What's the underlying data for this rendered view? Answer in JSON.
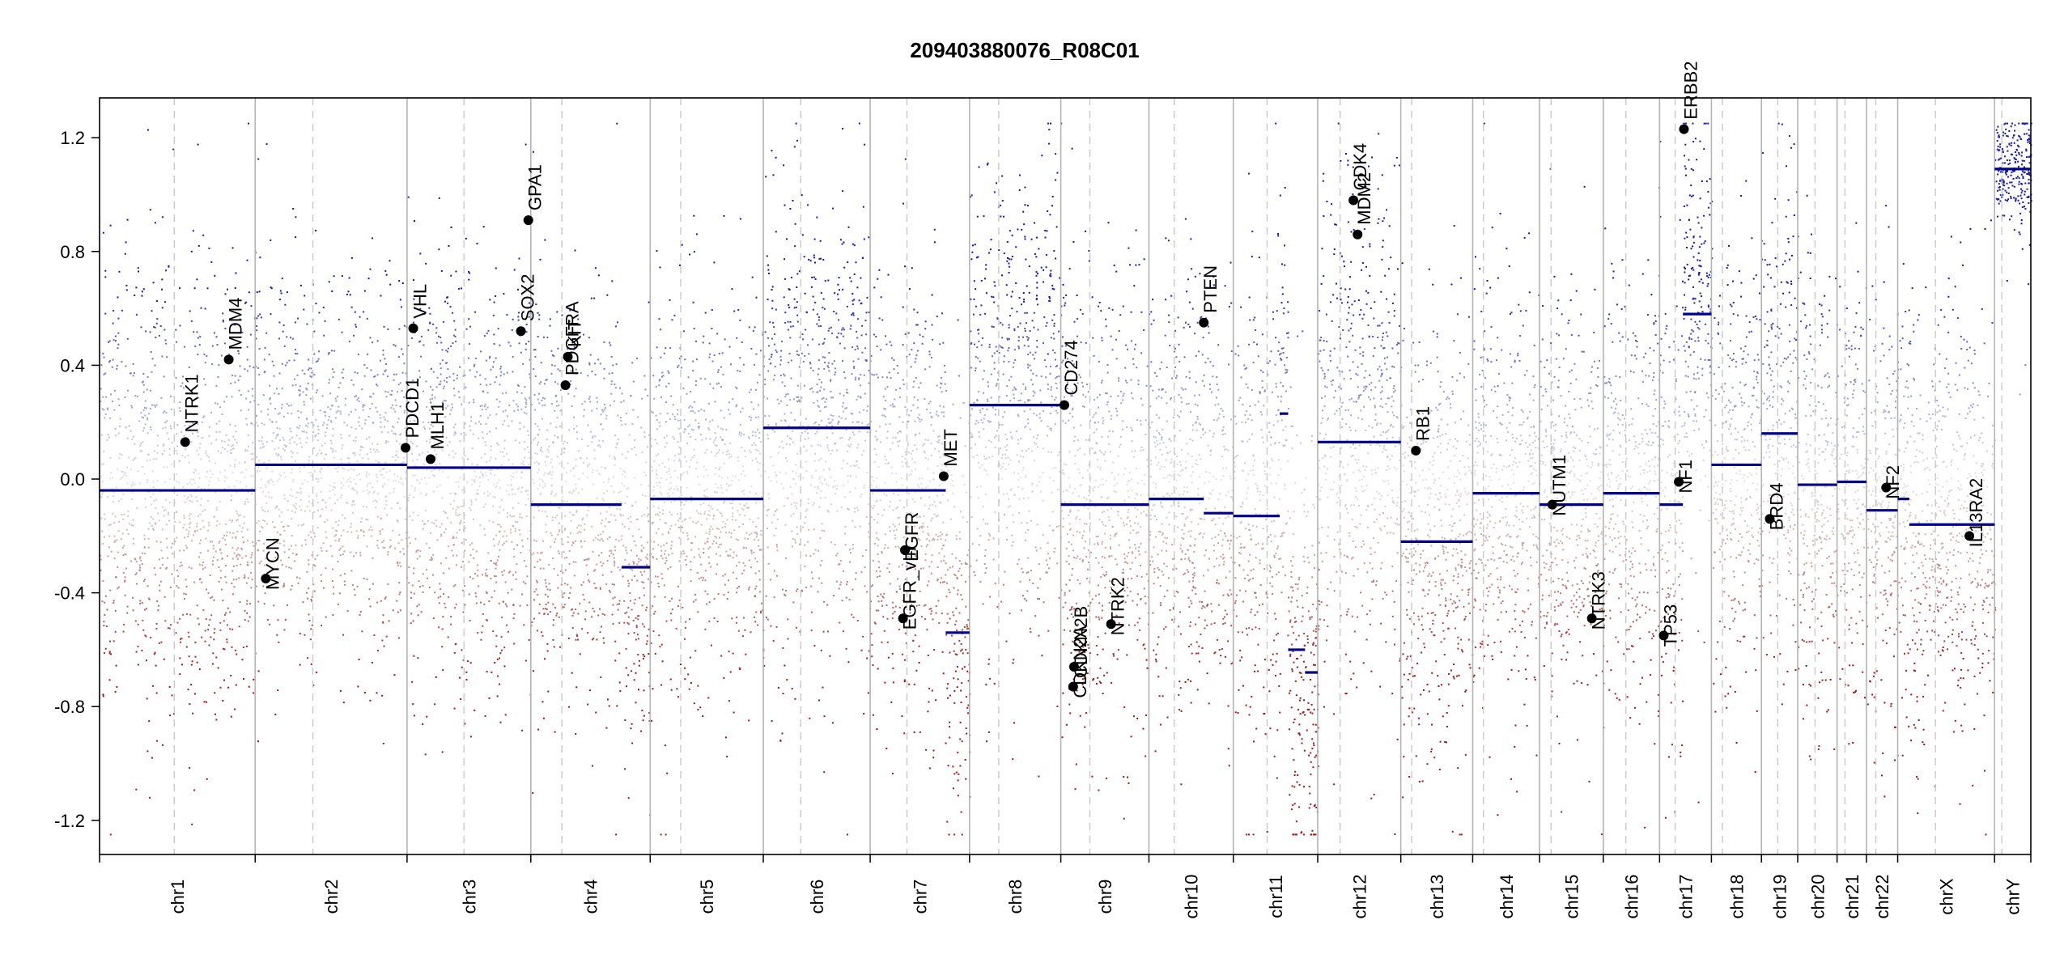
{
  "chart_data": {
    "type": "scatter",
    "title": "209403880076_R08C01",
    "xlabel": "",
    "ylabel": "",
    "ylim": [
      -1.32,
      1.34
    ],
    "y_ticks": [
      1.2,
      0.8,
      0.4,
      0.0,
      -0.4,
      -0.8,
      -1.2
    ],
    "y_tick_labels": [
      "1.2",
      "0.8",
      "0.4",
      "0.0",
      "-0.4",
      "-0.8",
      "-1.2"
    ],
    "grid": false,
    "legend": "none",
    "colors": {
      "gain": "#1a1aa0",
      "loss": "#a01a1a",
      "segment": "#00008b",
      "neutral": "#c8c8c8"
    },
    "chromosomes": [
      {
        "name": "chr1",
        "length": 249,
        "centromere": 0.48,
        "segments": [
          {
            "start": 0,
            "end": 1,
            "value": -0.04
          }
        ],
        "noise": 0.38
      },
      {
        "name": "chr2",
        "length": 243,
        "centromere": 0.38,
        "segments": [
          {
            "start": 0,
            "end": 1,
            "value": 0.05
          }
        ],
        "noise": 0.3
      },
      {
        "name": "chr3",
        "length": 198,
        "centromere": 0.46,
        "segments": [
          {
            "start": 0,
            "end": 1,
            "value": 0.04
          }
        ],
        "noise": 0.36
      },
      {
        "name": "chr4",
        "length": 191,
        "centromere": 0.26,
        "segments": [
          {
            "start": 0,
            "end": 0.76,
            "value": -0.09
          },
          {
            "start": 0.76,
            "end": 1,
            "value": -0.31
          }
        ],
        "noise": 0.34
      },
      {
        "name": "chr5",
        "length": 181,
        "centromere": 0.27,
        "segments": [
          {
            "start": 0,
            "end": 1,
            "value": -0.07
          }
        ],
        "noise": 0.32
      },
      {
        "name": "chr6",
        "length": 171,
        "centromere": 0.35,
        "segments": [
          {
            "start": 0,
            "end": 1,
            "value": 0.18
          }
        ],
        "noise": 0.38
      },
      {
        "name": "chr7",
        "length": 159,
        "centromere": 0.37,
        "segments": [
          {
            "start": 0,
            "end": 0.76,
            "value": -0.04
          },
          {
            "start": 0.76,
            "end": 1,
            "value": -0.54
          }
        ],
        "noise": 0.36
      },
      {
        "name": "chr8",
        "length": 146,
        "centromere": 0.32,
        "segments": [
          {
            "start": 0,
            "end": 1,
            "value": 0.26
          }
        ],
        "noise": 0.42
      },
      {
        "name": "chr9",
        "length": 141,
        "centromere": 0.33,
        "segments": [
          {
            "start": 0,
            "end": 1,
            "value": -0.09
          }
        ],
        "noise": 0.38
      },
      {
        "name": "chr10",
        "length": 135,
        "centromere": 0.3,
        "segments": [
          {
            "start": 0,
            "end": 0.65,
            "value": -0.07
          },
          {
            "start": 0.65,
            "end": 1,
            "value": -0.12
          }
        ],
        "noise": 0.34
      },
      {
        "name": "chr11",
        "length": 135,
        "centromere": 0.4,
        "segments": [
          {
            "start": 0,
            "end": 0.55,
            "value": -0.13
          },
          {
            "start": 0.55,
            "end": 0.65,
            "value": 0.23
          },
          {
            "start": 0.65,
            "end": 0.85,
            "value": -0.6
          },
          {
            "start": 0.85,
            "end": 1,
            "value": -0.68
          }
        ],
        "noise": 0.4
      },
      {
        "name": "chr12",
        "length": 133,
        "centromere": 0.27,
        "segments": [
          {
            "start": 0,
            "end": 1,
            "value": 0.13
          }
        ],
        "noise": 0.4
      },
      {
        "name": "chr13",
        "length": 115,
        "centromere": 0.15,
        "segments": [
          {
            "start": 0,
            "end": 1,
            "value": -0.22
          }
        ],
        "noise": 0.36
      },
      {
        "name": "chr14",
        "length": 107,
        "centromere": 0.16,
        "segments": [
          {
            "start": 0,
            "end": 1,
            "value": -0.05
          }
        ],
        "noise": 0.34
      },
      {
        "name": "chr15",
        "length": 102,
        "centromere": 0.18,
        "segments": [
          {
            "start": 0,
            "end": 1,
            "value": -0.09
          }
        ],
        "noise": 0.34
      },
      {
        "name": "chr16",
        "length": 90,
        "centromere": 0.4,
        "segments": [
          {
            "start": 0,
            "end": 1,
            "value": -0.05
          }
        ],
        "noise": 0.36
      },
      {
        "name": "chr17",
        "length": 83,
        "centromere": 0.3,
        "segments": [
          {
            "start": 0,
            "end": 0.45,
            "value": -0.09
          },
          {
            "start": 0.45,
            "end": 1,
            "value": 0.58
          }
        ],
        "noise": 0.38
      },
      {
        "name": "chr18",
        "length": 80,
        "centromere": 0.22,
        "segments": [
          {
            "start": 0,
            "end": 1,
            "value": 0.05
          }
        ],
        "noise": 0.34
      },
      {
        "name": "chr19",
        "length": 58,
        "centromere": 0.45,
        "segments": [
          {
            "start": 0,
            "end": 1,
            "value": 0.16
          }
        ],
        "noise": 0.4
      },
      {
        "name": "chr20",
        "length": 63,
        "centromere": 0.44,
        "segments": [
          {
            "start": 0,
            "end": 1,
            "value": -0.02
          }
        ],
        "noise": 0.36
      },
      {
        "name": "chr21",
        "length": 47,
        "centromere": 0.27,
        "segments": [
          {
            "start": 0,
            "end": 1,
            "value": -0.01
          }
        ],
        "noise": 0.34
      },
      {
        "name": "chr22",
        "length": 50,
        "centromere": 0.3,
        "segments": [
          {
            "start": 0,
            "end": 1,
            "value": -0.11
          }
        ],
        "noise": 0.38
      },
      {
        "name": "chrX",
        "length": 155,
        "centromere": 0.39,
        "segments": [
          {
            "start": 0,
            "end": 0.12,
            "value": -0.07
          },
          {
            "start": 0.12,
            "end": 1,
            "value": -0.16
          }
        ],
        "noise": 0.36
      },
      {
        "name": "chrY",
        "length": 58,
        "centromere": 0.2,
        "segments": [
          {
            "start": 0,
            "end": 1,
            "value": 1.09
          }
        ],
        "noise": 0.1
      }
    ],
    "genes": [
      {
        "name": "NTRK1",
        "chr": "chr1",
        "pos": 0.55,
        "value": 0.13
      },
      {
        "name": "MDM4",
        "chr": "chr1",
        "pos": 0.83,
        "value": 0.42
      },
      {
        "name": "MYCN",
        "chr": "chr2",
        "pos": 0.07,
        "value": -0.35
      },
      {
        "name": "PDCD1",
        "chr": "chr2",
        "pos": 0.99,
        "value": 0.11
      },
      {
        "name": "VHL",
        "chr": "chr3",
        "pos": 0.05,
        "value": 0.53
      },
      {
        "name": "MLH1",
        "chr": "chr3",
        "pos": 0.19,
        "value": 0.07
      },
      {
        "name": "SOX2",
        "chr": "chr3",
        "pos": 0.92,
        "value": 0.52
      },
      {
        "name": "GPA1",
        "chr": "chr3",
        "pos": 0.98,
        "value": 0.91
      },
      {
        "name": "PDGFRA",
        "chr": "chr4",
        "pos": 0.29,
        "value": 0.33
      },
      {
        "name": "KIT",
        "chr": "chr4",
        "pos": 0.31,
        "value": 0.43
      },
      {
        "name": "EGFR_vIII",
        "chr": "chr7",
        "pos": 0.33,
        "value": -0.49
      },
      {
        "name": "EGFR",
        "chr": "chr7",
        "pos": 0.35,
        "value": -0.25
      },
      {
        "name": "MET",
        "chr": "chr7",
        "pos": 0.74,
        "value": 0.01
      },
      {
        "name": "CD274",
        "chr": "chr9",
        "pos": 0.04,
        "value": 0.26
      },
      {
        "name": "CDKN2A",
        "chr": "chr9",
        "pos": 0.14,
        "value": -0.73
      },
      {
        "name": "CDKN2B",
        "chr": "chr9",
        "pos": 0.15,
        "value": -0.66
      },
      {
        "name": "NTRK2",
        "chr": "chr9",
        "pos": 0.57,
        "value": -0.51
      },
      {
        "name": "PTEN",
        "chr": "chr10",
        "pos": 0.65,
        "value": 0.55
      },
      {
        "name": "CDK4",
        "chr": "chr12",
        "pos": 0.43,
        "value": 0.98
      },
      {
        "name": "MDM2",
        "chr": "chr12",
        "pos": 0.48,
        "value": 0.86
      },
      {
        "name": "RB1",
        "chr": "chr13",
        "pos": 0.21,
        "value": 0.1
      },
      {
        "name": "NUTM1",
        "chr": "chr15",
        "pos": 0.2,
        "value": -0.09
      },
      {
        "name": "NTRK3",
        "chr": "chr15",
        "pos": 0.82,
        "value": -0.49
      },
      {
        "name": "TP53",
        "chr": "chr17",
        "pos": 0.08,
        "value": -0.55
      },
      {
        "name": "NF1",
        "chr": "chr17",
        "pos": 0.37,
        "value": -0.01
      },
      {
        "name": "ERBB2",
        "chr": "chr17",
        "pos": 0.47,
        "value": 1.23
      },
      {
        "name": "BRD4",
        "chr": "chr19",
        "pos": 0.23,
        "value": -0.14
      },
      {
        "name": "NF2",
        "chr": "chr22",
        "pos": 0.63,
        "value": -0.03
      },
      {
        "name": "IL13RA2",
        "chr": "chrX",
        "pos": 0.74,
        "value": -0.2
      }
    ]
  }
}
